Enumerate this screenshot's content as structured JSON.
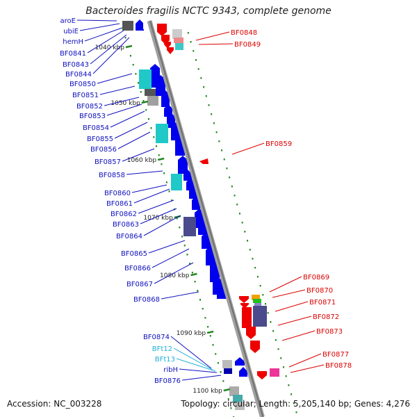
{
  "title": "Bacteroides fragilis NCTC 9343, complete genome",
  "footer": {
    "accession": "Accession: NC_003228",
    "summary": "Topology: circular; Length: 5,205,140 bp; Genes: 4,276"
  },
  "colors": {
    "backbone": "#808080",
    "left_labels": "#1010c0",
    "right_labels": "#dd0000",
    "trna_labels": "#20b0d8",
    "tick": "#228822",
    "plus_strand_gene": "#0000ee",
    "minus_strand_gene": "#ee0000"
  },
  "scale_ticks": [
    "1040 kbp",
    "1050 kbp",
    "1060 kbp",
    "1070 kbp",
    "1080 kbp",
    "1090 kbp",
    "1100 kbp"
  ],
  "left_labels": [
    "aroE",
    "ubiE",
    "hemH",
    "BF0841",
    "BF0843",
    "BF0844",
    "BF0850",
    "BF0851",
    "BF0852",
    "BF0853",
    "BF0854",
    "BF0855",
    "BF0856",
    "BF0857",
    "BF0858",
    "BF0860",
    "BF0861",
    "BF0862",
    "BF0863",
    "BF0864",
    "BF0865",
    "BF0866",
    "BF0867",
    "BF0868",
    "BF0874",
    "BFt12",
    "BFt13",
    "ribH",
    "BF0876"
  ],
  "trna_labels": [
    "BFt12",
    "BFt13"
  ],
  "right_labels": [
    "BF0848",
    "BF0849",
    "BF0859",
    "BF0869",
    "BF0870",
    "BF0871",
    "BF0872",
    "BF0873",
    "BF0877",
    "BF0878"
  ]
}
